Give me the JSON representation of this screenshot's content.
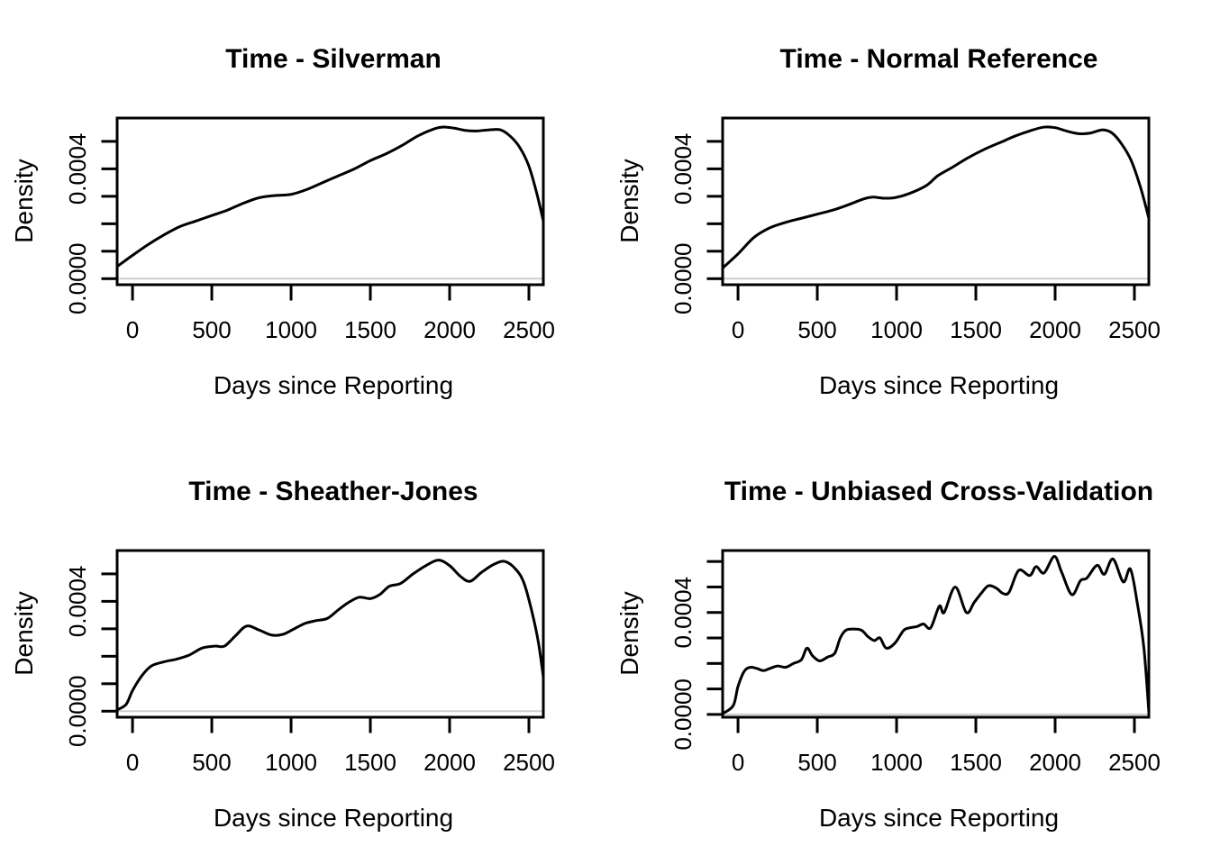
{
  "figure": {
    "background_color": "#ffffff",
    "text_color": "#000000",
    "curve_color": "#000000",
    "zero_line_color": "#cdcdcd"
  },
  "chart_data": [
    {
      "type": "line",
      "title": "Time - Silverman",
      "xlabel": "Days since Reporting",
      "ylabel": "Density",
      "xlim": [
        -97,
        2591
      ],
      "ylim": [
        -2.2e-05,
        0.000585
      ],
      "x_ticks": [
        0,
        500,
        1000,
        1500,
        2000,
        2500
      ],
      "x_tick_labels": [
        "0",
        "500",
        "1000",
        "1500",
        "2000",
        "2500"
      ],
      "y_ticks": [
        0,
        0.0001,
        0.0002,
        0.0003,
        0.0004,
        0.0005
      ],
      "y_tick_labels": [
        "0.0000",
        "",
        "",
        "",
        "0.0004",
        ""
      ],
      "zero_line": true,
      "legend": "none",
      "grid": false,
      "series": [
        {
          "name": "kde-silverman",
          "x": [
            -95,
            0,
            100,
            200,
            300,
            400,
            500,
            600,
            700,
            800,
            900,
            1000,
            1100,
            1200,
            1300,
            1400,
            1500,
            1600,
            1700,
            1800,
            1900,
            1960,
            2030,
            2100,
            2170,
            2250,
            2320,
            2380,
            2440,
            2500,
            2550,
            2591
          ],
          "y": [
            4.5e-05,
            8.5e-05,
            0.000125,
            0.00016,
            0.00019,
            0.00021,
            0.00023,
            0.00025,
            0.000275,
            0.000295,
            0.000303,
            0.000307,
            0.000325,
            0.00035,
            0.000375,
            0.0004,
            0.00043,
            0.000455,
            0.000485,
            0.00052,
            0.000545,
            0.000552,
            0.000548,
            0.00054,
            0.000538,
            0.000542,
            0.000542,
            0.00052,
            0.00048,
            0.00041,
            0.00031,
            0.00021
          ]
        }
      ]
    },
    {
      "type": "line",
      "title": "Time - Normal Reference",
      "xlabel": "Days since Reporting",
      "ylabel": "Density",
      "xlim": [
        -97,
        2591
      ],
      "ylim": [
        -2.2e-05,
        0.000585
      ],
      "x_ticks": [
        0,
        500,
        1000,
        1500,
        2000,
        2500
      ],
      "x_tick_labels": [
        "0",
        "500",
        "1000",
        "1500",
        "2000",
        "2500"
      ],
      "y_ticks": [
        0,
        0.0001,
        0.0002,
        0.0003,
        0.0004,
        0.0005
      ],
      "y_tick_labels": [
        "0.0000",
        "",
        "",
        "",
        "0.0004",
        ""
      ],
      "zero_line": true,
      "legend": "none",
      "grid": false,
      "series": [
        {
          "name": "kde-normal-reference",
          "x": [
            -95,
            0,
            100,
            200,
            300,
            400,
            500,
            600,
            700,
            790,
            850,
            920,
            990,
            1080,
            1190,
            1260,
            1350,
            1450,
            1550,
            1650,
            1750,
            1850,
            1930,
            2000,
            2070,
            2150,
            2220,
            2300,
            2360,
            2420,
            2480,
            2540,
            2591
          ],
          "y": [
            4e-05,
            9e-05,
            0.00015,
            0.000185,
            0.000205,
            0.00022,
            0.000235,
            0.00025,
            0.00027,
            0.00029,
            0.000297,
            0.000293,
            0.000295,
            0.00031,
            0.00034,
            0.000375,
            0.000405,
            0.00044,
            0.00047,
            0.000495,
            0.00052,
            0.00054,
            0.000552,
            0.00055,
            0.000538,
            0.000528,
            0.00053,
            0.000542,
            0.00053,
            0.00049,
            0.00043,
            0.00033,
            0.00022
          ]
        }
      ]
    },
    {
      "type": "line",
      "title": "Time - Sheather-Jones",
      "xlabel": "Days since Reporting",
      "ylabel": "Density",
      "xlim": [
        -97,
        2591
      ],
      "ylim": [
        -2.2e-05,
        0.000585
      ],
      "x_ticks": [
        0,
        500,
        1000,
        1500,
        2000,
        2500
      ],
      "x_tick_labels": [
        "0",
        "500",
        "1000",
        "1500",
        "2000",
        "2500"
      ],
      "y_ticks": [
        0,
        0.0001,
        0.0002,
        0.0003,
        0.0004,
        0.0005
      ],
      "y_tick_labels": [
        "0.0000",
        "",
        "",
        "",
        "0.0004",
        ""
      ],
      "zero_line": true,
      "legend": "none",
      "grid": false,
      "series": [
        {
          "name": "kde-sheather-jones",
          "x": [
            -97,
            -40,
            0,
            60,
            120,
            200,
            280,
            360,
            440,
            520,
            580,
            650,
            720,
            800,
            880,
            950,
            1020,
            1090,
            1160,
            1230,
            1300,
            1360,
            1430,
            1500,
            1560,
            1620,
            1690,
            1770,
            1850,
            1930,
            2000,
            2070,
            2130,
            2200,
            2280,
            2350,
            2420,
            2470,
            2520,
            2560,
            2591
          ],
          "y": [
            5e-06,
            2.5e-05,
            7.5e-05,
            0.00013,
            0.000165,
            0.00018,
            0.00019,
            0.000205,
            0.00023,
            0.000237,
            0.000237,
            0.000275,
            0.00031,
            0.000295,
            0.000277,
            0.00028,
            0.0003,
            0.00032,
            0.00033,
            0.000338,
            0.00037,
            0.000395,
            0.000415,
            0.00041,
            0.000425,
            0.000455,
            0.000465,
            0.0005,
            0.00053,
            0.00055,
            0.00053,
            0.00049,
            0.000473,
            0.000505,
            0.000535,
            0.000545,
            0.000515,
            0.000465,
            0.00036,
            0.00025,
            0.000125
          ]
        }
      ]
    },
    {
      "type": "line",
      "title": "Time - Unbiased Cross-Validation",
      "xlabel": "Days since Reporting",
      "ylabel": "Density",
      "xlim": [
        -97,
        2591
      ],
      "ylim": [
        -1.1e-05,
        0.000643
      ],
      "x_ticks": [
        0,
        500,
        1000,
        1500,
        2000,
        2500
      ],
      "x_tick_labels": [
        "0",
        "500",
        "1000",
        "1500",
        "2000",
        "2500"
      ],
      "y_ticks": [
        0,
        0.0001,
        0.0002,
        0.0003,
        0.0004,
        0.0005,
        0.0006
      ],
      "y_tick_labels": [
        "0.0000",
        "",
        "",
        "",
        "0.0004",
        "",
        ""
      ],
      "zero_line": true,
      "legend": "none",
      "grid": false,
      "series": [
        {
          "name": "kde-unbiased-cross-validation",
          "x": [
            -97,
            -30,
            0,
            40,
            80,
            120,
            160,
            200,
            250,
            300,
            350,
            400,
            435,
            470,
            515,
            565,
            610,
            645,
            680,
            730,
            780,
            820,
            860,
            895,
            935,
            990,
            1045,
            1085,
            1130,
            1170,
            1215,
            1270,
            1300,
            1370,
            1440,
            1490,
            1540,
            1580,
            1630,
            1670,
            1710,
            1770,
            1840,
            1880,
            1930,
            1995,
            2040,
            2105,
            2160,
            2200,
            2265,
            2310,
            2365,
            2430,
            2475,
            2520,
            2560,
            2591
          ],
          "y": [
            3e-06,
            3.5e-05,
            0.00011,
            0.00017,
            0.000185,
            0.00018,
            0.000172,
            0.00018,
            0.00019,
            0.000185,
            0.0002,
            0.000215,
            0.00026,
            0.00023,
            0.00021,
            0.000225,
            0.00024,
            0.0003,
            0.00033,
            0.000335,
            0.00033,
            0.000305,
            0.00029,
            0.0003,
            0.00026,
            0.00028,
            0.00033,
            0.00034,
            0.000345,
            0.000355,
            0.00034,
            0.000425,
            0.0004,
            0.0005,
            0.0004,
            0.00044,
            0.00048,
            0.000505,
            0.000495,
            0.000475,
            0.00048,
            0.000565,
            0.000545,
            0.00058,
            0.000555,
            0.00062,
            0.00056,
            0.00047,
            0.000525,
            0.000535,
            0.000585,
            0.00055,
            0.00061,
            0.00052,
            0.00057,
            0.00043,
            0.00026,
            1e-05
          ]
        }
      ]
    }
  ]
}
